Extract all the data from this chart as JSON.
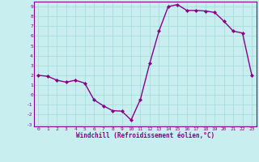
{
  "xlabel": "Windchill (Refroidissement éolien,°C)",
  "x_values": [
    0,
    1,
    2,
    3,
    4,
    5,
    6,
    7,
    8,
    9,
    10,
    11,
    12,
    13,
    14,
    15,
    16,
    17,
    18,
    19,
    20,
    21,
    22,
    23
  ],
  "y_values": [
    2.0,
    1.9,
    1.5,
    1.3,
    1.5,
    1.2,
    -0.5,
    -1.1,
    -1.6,
    -1.65,
    -2.55,
    -0.45,
    3.2,
    6.5,
    9.0,
    9.2,
    8.6,
    8.6,
    8.55,
    8.4,
    7.5,
    6.5,
    6.3,
    2.0
  ],
  "ylim": [
    -3.2,
    9.5
  ],
  "xlim": [
    -0.5,
    23.5
  ],
  "yticks": [
    -3,
    -2,
    -1,
    0,
    1,
    2,
    3,
    4,
    5,
    6,
    7,
    8,
    9
  ],
  "xticks": [
    0,
    1,
    2,
    3,
    4,
    5,
    6,
    7,
    8,
    9,
    10,
    11,
    12,
    13,
    14,
    15,
    16,
    17,
    18,
    19,
    20,
    21,
    22,
    23
  ],
  "line_color": "#880088",
  "marker": "D",
  "marker_size": 2,
  "bg_color": "#c8eef0",
  "grid_color": "#aadddd",
  "spine_color": "#880088",
  "axis_label_color": "#880088",
  "tick_label_color": "#880088",
  "line_width": 1.0,
  "tick_fontsize": 4.5,
  "xlabel_fontsize": 5.5
}
